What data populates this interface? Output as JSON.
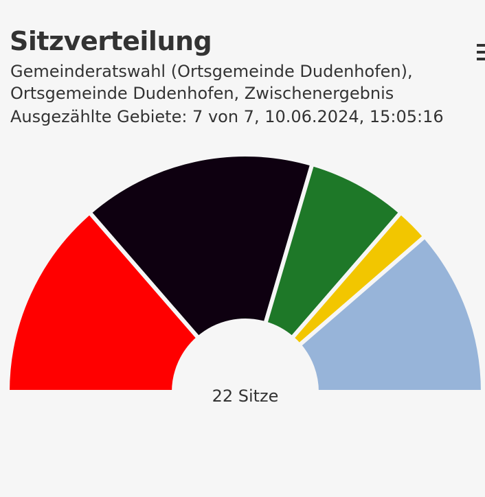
{
  "header": {
    "title": "Sitzverteilung",
    "subtitle_line1": "Gemeinderatswahl (Ortsgemeinde Dudenhofen),",
    "subtitle_line2": "Ortsgemeinde Dudenhofen, Zwischenergebnis",
    "subtitle_line3": "Ausgezählte Gebiete: 7 von 7, 10.06.2024, 15:05:16"
  },
  "menu": {
    "icon": "menu-icon"
  },
  "chart_data": {
    "type": "pie",
    "variant": "semicircle-parliament",
    "total_label": "22 Sitze",
    "total": 22,
    "series": [
      {
        "value": 6,
        "color": "#ff0000"
      },
      {
        "value": 7,
        "color": "#0e0010"
      },
      {
        "value": 3,
        "color": "#1e7828"
      },
      {
        "value": 1,
        "color": "#f2c600"
      },
      {
        "value": 5,
        "color": "#97b4d9"
      }
    ]
  }
}
